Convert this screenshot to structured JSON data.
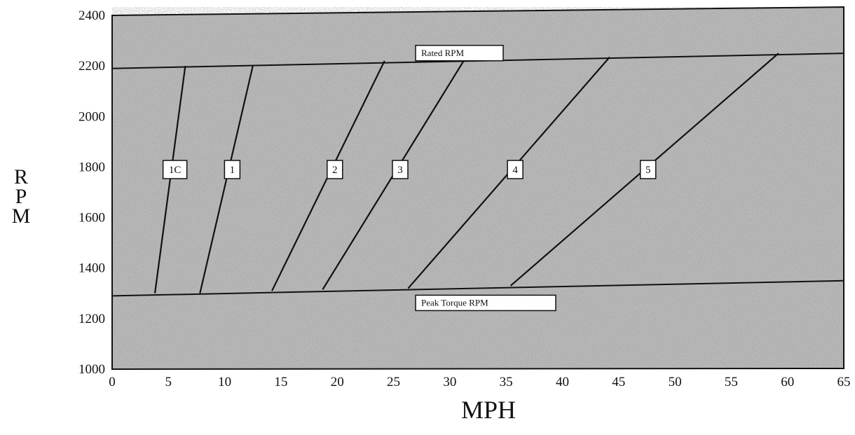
{
  "chart_data": {
    "type": "line",
    "title": "",
    "xlabel": "MPH",
    "ylabel": "RPM",
    "xlim": [
      0,
      65
    ],
    "ylim": [
      1000,
      2400
    ],
    "x_ticks": [
      "0",
      "5",
      "10",
      "15",
      "20",
      "25",
      "30",
      "35",
      "40",
      "45",
      "50",
      "55",
      "60",
      "65"
    ],
    "y_ticks": [
      "1000",
      "1200",
      "1400",
      "1600",
      "1800",
      "2000",
      "2200",
      "2400"
    ],
    "grid": false,
    "background": "dark stippled gray",
    "reference_lines": [
      {
        "label": "Rated RPM",
        "y_start": 2190,
        "y_end": 2250
      },
      {
        "label": "Peak Torque RPM",
        "y_start": 1290,
        "y_end": 1350
      }
    ],
    "series": [
      {
        "name": "1C",
        "x": [
          3.8,
          6.5
        ],
        "y": [
          1300,
          2200
        ]
      },
      {
        "name": "1",
        "x": [
          7.8,
          12.5
        ],
        "y": [
          1300,
          2200
        ]
      },
      {
        "name": "2",
        "x": [
          14.2,
          24.2
        ],
        "y": [
          1310,
          2220
        ]
      },
      {
        "name": "3",
        "x": [
          18.7,
          31.3
        ],
        "y": [
          1315,
          2225
        ]
      },
      {
        "name": "4",
        "x": [
          26.3,
          44.2
        ],
        "y": [
          1320,
          2235
        ]
      },
      {
        "name": "5",
        "x": [
          35.4,
          59.2
        ],
        "y": [
          1330,
          2250
        ]
      }
    ]
  }
}
